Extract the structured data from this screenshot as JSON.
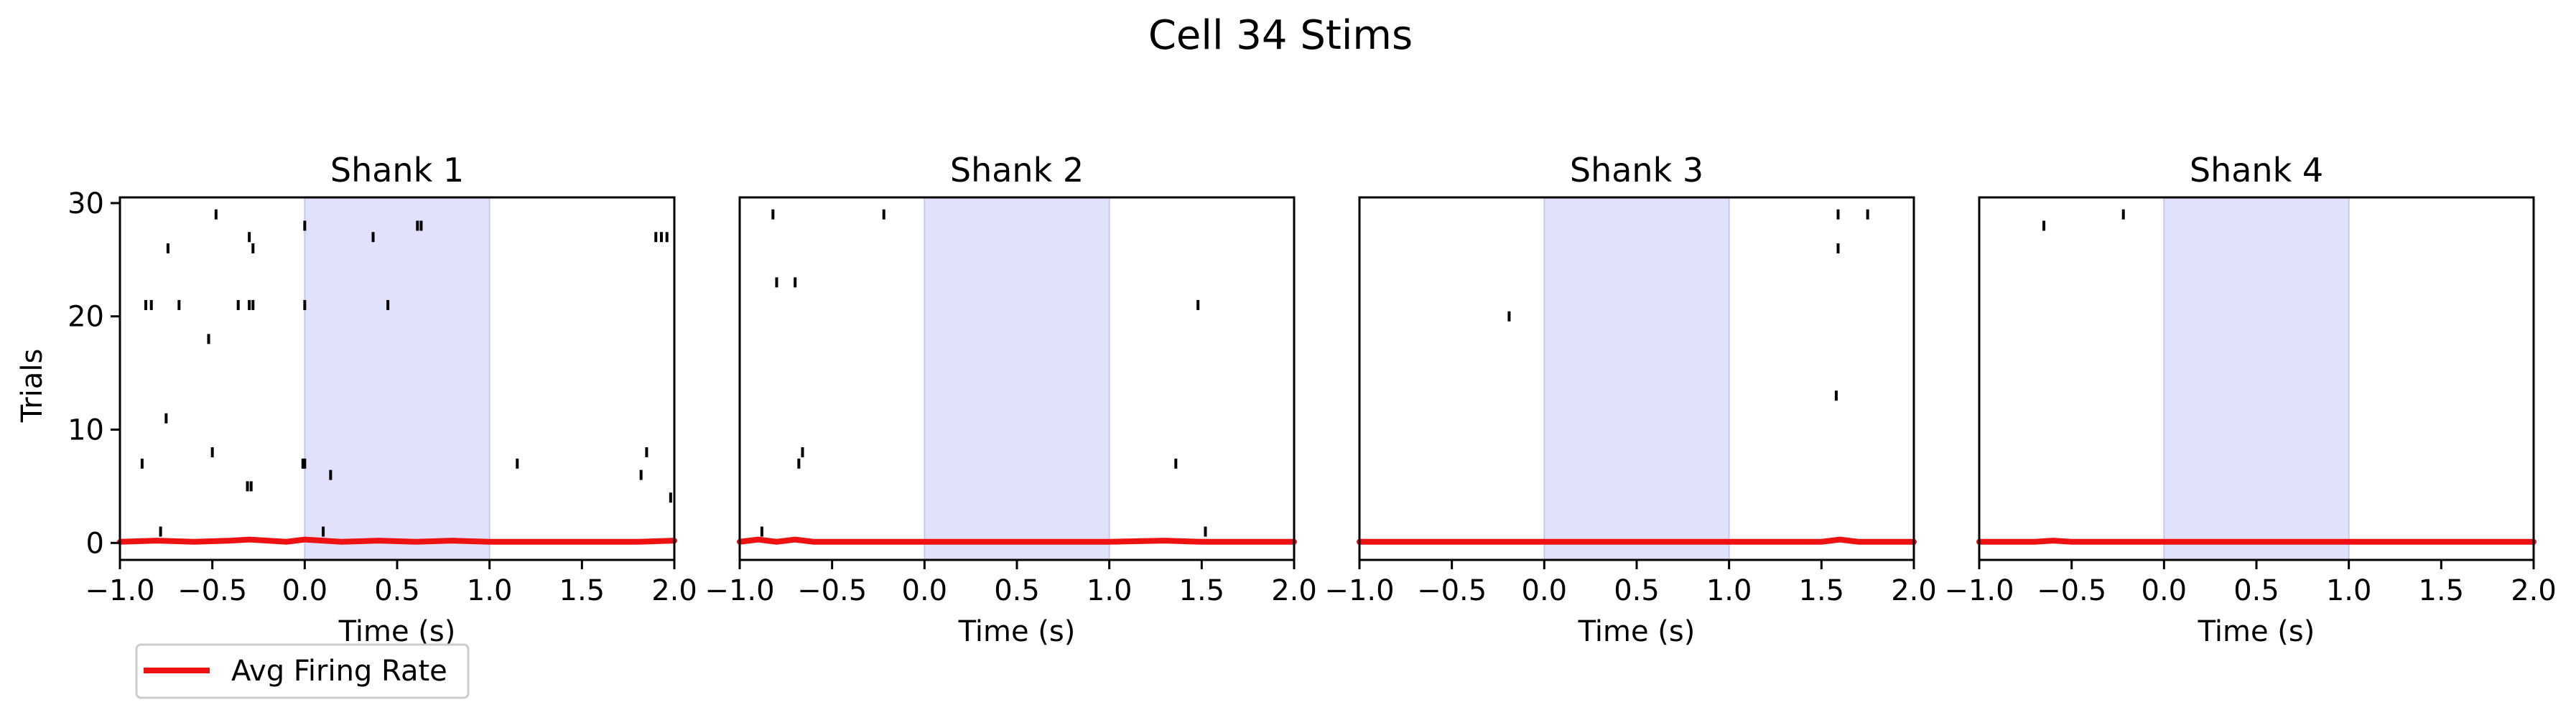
{
  "figure": {
    "suptitle": "Cell 34 Stims",
    "ylabel": "Trials",
    "legend_label": "Avg Firing Rate"
  },
  "colors": {
    "background": "#ffffff",
    "stim_shade": "#e1e1fb",
    "stim_edge": "#c8c8f4",
    "raster": "#000000",
    "rate_line": "#ee1111",
    "axis": "#000000"
  },
  "chart_data": [
    {
      "type": "scatter",
      "title": "Shank 1",
      "xlabel": "Time (s)",
      "ylabel": "Trials",
      "xlim": [
        -1.0,
        2.0
      ],
      "ylim": [
        -1.5,
        30.5
      ],
      "xticks": [
        -1.0,
        -0.5,
        0.0,
        0.5,
        1.0,
        1.5,
        2.0
      ],
      "xtick_labels": [
        "−1.0",
        "−0.5",
        "0.0",
        "0.5",
        "1.0",
        "1.5",
        "2.0"
      ],
      "yticks": [
        0,
        10,
        20,
        30
      ],
      "ytick_labels": [
        "0",
        "10",
        "20",
        "30"
      ],
      "stim_window": [
        0.0,
        1.0
      ],
      "spikes": [
        {
          "t": -0.78,
          "trial": 1
        },
        {
          "t": 0.1,
          "trial": 1
        },
        {
          "t": -0.88,
          "trial": 7
        },
        {
          "t": -0.01,
          "trial": 7
        },
        {
          "t": 0.0,
          "trial": 7
        },
        {
          "t": 0.14,
          "trial": 6
        },
        {
          "t": 1.15,
          "trial": 7
        },
        {
          "t": -0.31,
          "trial": 5
        },
        {
          "t": -0.29,
          "trial": 5
        },
        {
          "t": -0.5,
          "trial": 8
        },
        {
          "t": 1.82,
          "trial": 6
        },
        {
          "t": 1.85,
          "trial": 8
        },
        {
          "t": 1.98,
          "trial": 4
        },
        {
          "t": -0.75,
          "trial": 11
        },
        {
          "t": -0.52,
          "trial": 18
        },
        {
          "t": -0.86,
          "trial": 21
        },
        {
          "t": -0.83,
          "trial": 21
        },
        {
          "t": -0.68,
          "trial": 21
        },
        {
          "t": -0.36,
          "trial": 21
        },
        {
          "t": -0.3,
          "trial": 21
        },
        {
          "t": -0.28,
          "trial": 21
        },
        {
          "t": 0.0,
          "trial": 21
        },
        {
          "t": 0.45,
          "trial": 21
        },
        {
          "t": -0.74,
          "trial": 26
        },
        {
          "t": -0.3,
          "trial": 27
        },
        {
          "t": -0.28,
          "trial": 26
        },
        {
          "t": 0.0,
          "trial": 28
        },
        {
          "t": 0.37,
          "trial": 27
        },
        {
          "t": 0.61,
          "trial": 28
        },
        {
          "t": 0.63,
          "trial": 28
        },
        {
          "t": -0.48,
          "trial": 29
        },
        {
          "t": 1.9,
          "trial": 27
        },
        {
          "t": 1.93,
          "trial": 27
        },
        {
          "t": 1.96,
          "trial": 27
        }
      ],
      "avg_rate": {
        "x": [
          -1.0,
          -0.8,
          -0.6,
          -0.4,
          -0.3,
          -0.2,
          -0.1,
          0.0,
          0.2,
          0.4,
          0.6,
          0.8,
          1.0,
          1.2,
          1.5,
          1.8,
          2.0
        ],
        "y": [
          0.1,
          0.2,
          0.1,
          0.2,
          0.3,
          0.2,
          0.1,
          0.3,
          0.1,
          0.2,
          0.1,
          0.2,
          0.1,
          0.1,
          0.1,
          0.1,
          0.2
        ]
      }
    },
    {
      "type": "scatter",
      "title": "Shank 2",
      "xlabel": "Time (s)",
      "xlim": [
        -1.0,
        2.0
      ],
      "ylim": [
        -1.5,
        30.5
      ],
      "xticks": [
        -1.0,
        -0.5,
        0.0,
        0.5,
        1.0,
        1.5,
        2.0
      ],
      "xtick_labels": [
        "−1.0",
        "−0.5",
        "0.0",
        "0.5",
        "1.0",
        "1.5",
        "2.0"
      ],
      "stim_window": [
        0.0,
        1.0
      ],
      "spikes": [
        {
          "t": -0.88,
          "trial": 1
        },
        {
          "t": 1.52,
          "trial": 1
        },
        {
          "t": -0.68,
          "trial": 7
        },
        {
          "t": -0.66,
          "trial": 8
        },
        {
          "t": 1.36,
          "trial": 7
        },
        {
          "t": 1.48,
          "trial": 21
        },
        {
          "t": -0.8,
          "trial": 23
        },
        {
          "t": -0.7,
          "trial": 23
        },
        {
          "t": -0.82,
          "trial": 29
        },
        {
          "t": -0.22,
          "trial": 29
        }
      ],
      "avg_rate": {
        "x": [
          -1.0,
          -0.9,
          -0.8,
          -0.7,
          -0.6,
          -0.5,
          0.0,
          0.5,
          1.0,
          1.3,
          1.5,
          1.7,
          2.0
        ],
        "y": [
          0.1,
          0.3,
          0.1,
          0.3,
          0.1,
          0.1,
          0.1,
          0.1,
          0.1,
          0.2,
          0.1,
          0.1,
          0.1
        ]
      }
    },
    {
      "type": "scatter",
      "title": "Shank 3",
      "xlabel": "Time (s)",
      "xlim": [
        -1.0,
        2.0
      ],
      "ylim": [
        -1.5,
        30.5
      ],
      "xticks": [
        -1.0,
        -0.5,
        0.0,
        0.5,
        1.0,
        1.5,
        2.0
      ],
      "xtick_labels": [
        "−1.0",
        "−0.5",
        "0.0",
        "0.5",
        "1.0",
        "1.5",
        "2.0"
      ],
      "stim_window": [
        0.0,
        1.0
      ],
      "spikes": [
        {
          "t": -0.19,
          "trial": 20
        },
        {
          "t": 1.58,
          "trial": 13
        },
        {
          "t": 1.59,
          "trial": 26
        },
        {
          "t": 1.59,
          "trial": 29
        },
        {
          "t": 1.75,
          "trial": 29
        }
      ],
      "avg_rate": {
        "x": [
          -1.0,
          -0.5,
          0.0,
          0.5,
          1.0,
          1.3,
          1.5,
          1.6,
          1.7,
          2.0
        ],
        "y": [
          0.1,
          0.1,
          0.1,
          0.1,
          0.1,
          0.1,
          0.1,
          0.3,
          0.1,
          0.1
        ]
      }
    },
    {
      "type": "scatter",
      "title": "Shank 4",
      "xlabel": "Time (s)",
      "xlim": [
        -1.0,
        2.0
      ],
      "ylim": [
        -1.5,
        30.5
      ],
      "xticks": [
        -1.0,
        -0.5,
        0.0,
        0.5,
        1.0,
        1.5,
        2.0
      ],
      "xtick_labels": [
        "−1.0",
        "−0.5",
        "0.0",
        "0.5",
        "1.0",
        "1.5",
        "2.0"
      ],
      "stim_window": [
        0.0,
        1.0
      ],
      "spikes": [
        {
          "t": -0.65,
          "trial": 28
        },
        {
          "t": -0.22,
          "trial": 29
        }
      ],
      "avg_rate": {
        "x": [
          -1.0,
          -0.7,
          -0.6,
          -0.5,
          0.0,
          0.5,
          1.0,
          1.5,
          2.0
        ],
        "y": [
          0.1,
          0.1,
          0.2,
          0.1,
          0.1,
          0.1,
          0.1,
          0.1,
          0.1
        ]
      }
    }
  ]
}
